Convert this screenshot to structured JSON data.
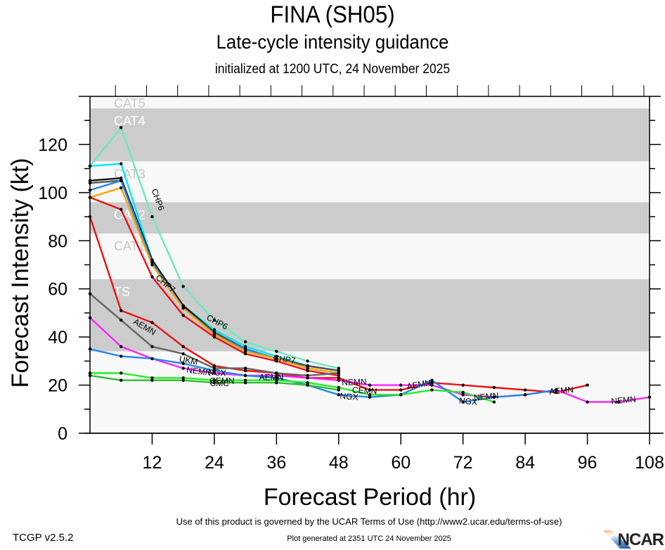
{
  "header": {
    "title": "FINA (SH05)",
    "subtitle": "Late-cycle intensity guidance",
    "initialized": "initialized at 1200 UTC, 24 November 2025"
  },
  "footer": {
    "version": "TCGP v2.5.2",
    "terms": "Use of this product is governed by the UCAR Terms of Use (http://www2.ucar.edu/terms-of-use)",
    "generated": "Plot generated at 2351 UTC   24 November 2025",
    "logo": "NCAR"
  },
  "chart_data": {
    "type": "line",
    "title": "FINA (SH05)",
    "subtitle": "Late-cycle intensity guidance",
    "xlabel": "Forecast Period (hr)",
    "ylabel": "Forecast Intensity (kt)",
    "xlim": [
      0,
      108
    ],
    "ylim": [
      0,
      140
    ],
    "xticks": [
      12,
      24,
      36,
      48,
      60,
      72,
      84,
      96,
      108
    ],
    "yticks": [
      0,
      20,
      40,
      60,
      80,
      100,
      120
    ],
    "bands": [
      {
        "label": "CAT5",
        "from": 135,
        "to": 140,
        "shade": "light"
      },
      {
        "label": "CAT4",
        "from": 113,
        "to": 135,
        "shade": "dark"
      },
      {
        "label": "CAT3",
        "from": 96,
        "to": 113,
        "shade": "light"
      },
      {
        "label": "CAT2",
        "from": 83,
        "to": 96,
        "shade": "dark"
      },
      {
        "label": "CAT1",
        "from": 64,
        "to": 83,
        "shade": "light"
      },
      {
        "label": "TS",
        "from": 34,
        "to": 64,
        "shade": "dark"
      },
      {
        "label": "",
        "from": 0,
        "to": 34,
        "shade": "light"
      }
    ],
    "band_colors": {
      "dark": "#cccccc",
      "light": "#f8f8f8"
    },
    "series": [
      {
        "name": "CHP6",
        "color": "#6ee8c0",
        "x": [
          0,
          6,
          12,
          18,
          24,
          30,
          36,
          42,
          48
        ],
        "values": [
          111,
          127,
          90,
          61,
          47,
          38,
          34,
          30,
          27
        ]
      },
      {
        "name": "cyan",
        "color": "#00e8f0",
        "x": [
          0,
          6,
          12,
          18,
          24,
          30,
          36,
          42,
          48
        ],
        "values": [
          111,
          112,
          72,
          53,
          43,
          36,
          32,
          28,
          26
        ]
      },
      {
        "name": "black",
        "color": "#111111",
        "x": [
          0,
          6,
          12,
          18,
          24,
          30,
          36,
          42,
          48
        ],
        "values": [
          105,
          106,
          72,
          53,
          42,
          35,
          31,
          28,
          26
        ]
      },
      {
        "name": "gray-top",
        "color": "#555555",
        "x": [
          0,
          6,
          12,
          18,
          24,
          30,
          36,
          42,
          48
        ],
        "values": [
          104,
          105,
          71,
          52,
          42,
          35,
          31,
          28,
          26
        ]
      },
      {
        "name": "blue-top",
        "color": "#2288ee",
        "x": [
          0,
          6,
          12,
          18,
          24,
          30,
          36,
          42,
          48
        ],
        "values": [
          101,
          105,
          71,
          52,
          41,
          35,
          31,
          27,
          25
        ]
      },
      {
        "name": "orange",
        "color": "#ffa500",
        "x": [
          0,
          6,
          12,
          18,
          24,
          30,
          36,
          42,
          48
        ],
        "values": [
          98,
          102,
          70,
          52,
          41,
          34,
          31,
          27,
          25
        ]
      },
      {
        "name": "CHP7",
        "color": "#ee1111",
        "x": [
          0,
          6,
          12,
          18,
          24,
          30,
          36,
          42,
          48
        ],
        "values": [
          98,
          93,
          65,
          49,
          40,
          33,
          30,
          26,
          24
        ]
      },
      {
        "name": "AEMN",
        "color": "#ee1111",
        "x": [
          0,
          6,
          12,
          18,
          24,
          30,
          36,
          42,
          48,
          54,
          60,
          66,
          72,
          78,
          84,
          90,
          96
        ],
        "values": [
          90,
          51,
          46,
          36,
          28,
          26,
          25,
          23,
          23,
          18,
          18,
          21,
          20,
          19,
          18,
          17,
          20
        ]
      },
      {
        "name": "UKM",
        "color": "#666666",
        "x": [
          0,
          6,
          12,
          18,
          24,
          30,
          36,
          42,
          48
        ],
        "values": [
          58,
          47,
          36,
          33,
          27,
          27,
          25,
          24,
          25
        ]
      },
      {
        "name": "NEMN",
        "color": "#ff22ff",
        "x": [
          0,
          6,
          12,
          18,
          24,
          30,
          36,
          42,
          48,
          54,
          60,
          66,
          72,
          78,
          84,
          90,
          96,
          102,
          108
        ],
        "values": [
          48,
          36,
          31,
          27,
          25,
          24,
          24,
          23,
          22,
          20,
          20,
          20,
          16,
          15,
          16,
          18,
          13,
          13,
          15
        ]
      },
      {
        "name": "NGX",
        "color": "#2288ee",
        "x": [
          0,
          6,
          12,
          18,
          24,
          30,
          36,
          42,
          48,
          54,
          60,
          66,
          72,
          78,
          84,
          90
        ],
        "values": [
          35,
          32,
          31,
          29,
          26,
          24,
          23,
          20,
          16,
          15,
          16,
          22,
          13,
          15,
          16,
          18
        ]
      },
      {
        "name": "CEMN",
        "color": "#22ee22",
        "x": [
          0,
          6,
          12,
          18,
          24,
          30,
          36,
          42,
          48,
          54,
          60,
          66,
          72,
          78
        ],
        "values": [
          25,
          25,
          23,
          23,
          22,
          22,
          22,
          21,
          19,
          16,
          16,
          18,
          17,
          13
        ]
      },
      {
        "name": "CMC",
        "color": "#33bb33",
        "x": [
          0,
          6,
          12,
          18,
          24,
          30,
          36,
          42,
          48
        ],
        "values": [
          24,
          22,
          22,
          22,
          21,
          21,
          21,
          20,
          18
        ]
      }
    ],
    "labels": [
      {
        "text": "CHP6",
        "x": 13,
        "y": 97,
        "angle": 70
      },
      {
        "text": "CHP6",
        "x": 24.5,
        "y": 46,
        "angle": 28
      },
      {
        "text": "CHP7",
        "x": 14.5,
        "y": 62,
        "angle": 40
      },
      {
        "text": "CHP7",
        "x": 37.5,
        "y": 30.5,
        "angle": 8
      },
      {
        "text": "AEMN",
        "x": 10.5,
        "y": 44,
        "angle": 30
      },
      {
        "text": "UKM",
        "x": 19,
        "y": 30,
        "angle": 10
      },
      {
        "text": "NEMN",
        "x": 21,
        "y": 25.5,
        "angle": 8
      },
      {
        "text": "NGX",
        "x": 24.5,
        "y": 25,
        "angle": 5
      },
      {
        "text": "CEMN",
        "x": 25.5,
        "y": 21.5,
        "angle": 0
      },
      {
        "text": "CMC",
        "x": 25,
        "y": 20.5,
        "angle": 0
      },
      {
        "text": "AEMN",
        "x": 35,
        "y": 23,
        "angle": 0
      },
      {
        "text": "NEMN",
        "x": 51,
        "y": 21,
        "angle": -2
      },
      {
        "text": "CEMN",
        "x": 53,
        "y": 17.5,
        "angle": 3
      },
      {
        "text": "NGX",
        "x": 50,
        "y": 15,
        "angle": 5
      },
      {
        "text": "AEMN",
        "x": 63.5,
        "y": 20,
        "angle": -10
      },
      {
        "text": "NGX",
        "x": 73,
        "y": 13,
        "angle": 5
      },
      {
        "text": "NEMN",
        "x": 76.5,
        "y": 15,
        "angle": -5
      },
      {
        "text": "AEMN",
        "x": 91,
        "y": 17.5,
        "angle": -5
      },
      {
        "text": "NEMN",
        "x": 103,
        "y": 13.5,
        "angle": -5
      }
    ]
  }
}
